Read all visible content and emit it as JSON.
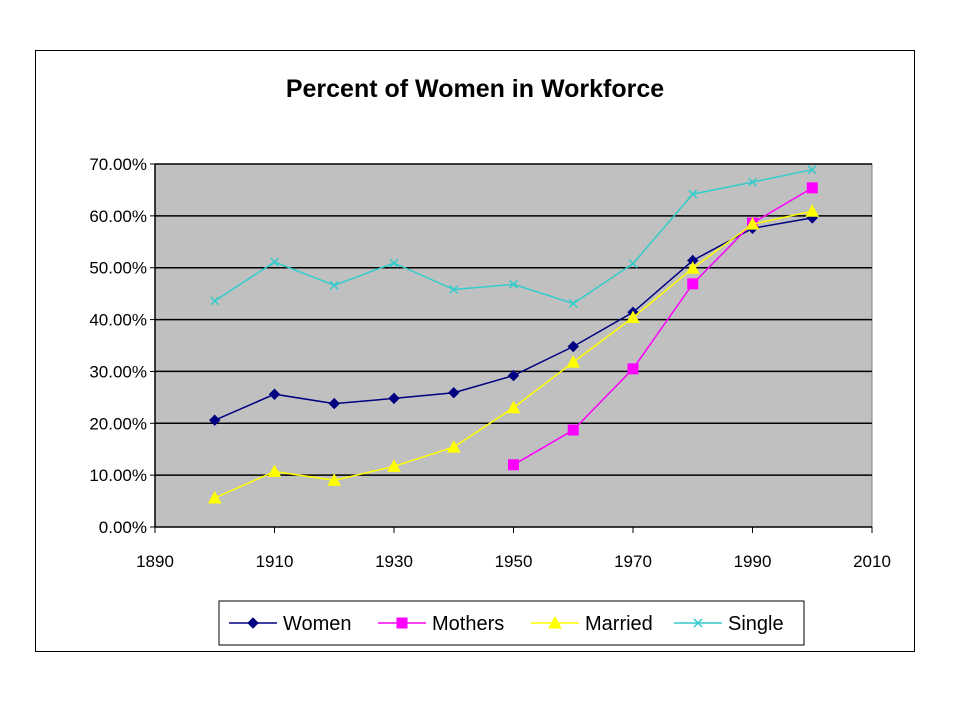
{
  "chart_data": {
    "type": "line",
    "title": "Percent of Women in Workforce",
    "xlabel": "",
    "ylabel": "",
    "xlim": [
      1890,
      2010
    ],
    "ylim": [
      0,
      0.7
    ],
    "x_ticks": [
      1890,
      1910,
      1930,
      1950,
      1970,
      1990,
      2010
    ],
    "x_tick_labels": [
      "1890",
      "1910",
      "1930",
      "1950",
      "1970",
      "1990",
      "2010"
    ],
    "y_ticks": [
      0,
      0.1,
      0.2,
      0.3,
      0.4,
      0.5,
      0.6,
      0.7
    ],
    "y_tick_labels": [
      "0.00%",
      "10.00%",
      "20.00%",
      "30.00%",
      "40.00%",
      "50.00%",
      "60.00%",
      "70.00%"
    ],
    "grid": "horizontal",
    "plot_background": "#c0c0c0",
    "legend_position": "bottom",
    "series": [
      {
        "name": "Women",
        "color": "#000080",
        "marker": "diamond",
        "x": [
          1900,
          1910,
          1920,
          1930,
          1940,
          1950,
          1960,
          1970,
          1980,
          1990,
          2000
        ],
        "values": [
          0.206,
          0.256,
          0.238,
          0.248,
          0.259,
          0.292,
          0.348,
          0.414,
          0.514,
          0.576,
          0.596
        ]
      },
      {
        "name": "Mothers",
        "color": "#ff00ff",
        "marker": "square",
        "x": [
          1950,
          1960,
          1970,
          1980,
          1990,
          2000
        ],
        "values": [
          0.12,
          0.187,
          0.305,
          0.469,
          0.586,
          0.654
        ]
      },
      {
        "name": "Married",
        "color": "#ffff00",
        "marker": "triangle",
        "x": [
          1900,
          1910,
          1920,
          1930,
          1940,
          1950,
          1960,
          1970,
          1980,
          1990,
          2000
        ],
        "values": [
          0.056,
          0.107,
          0.09,
          0.117,
          0.154,
          0.23,
          0.318,
          0.404,
          0.499,
          0.584,
          0.609
        ]
      },
      {
        "name": "Single",
        "color": "#33cccc",
        "marker": "x",
        "x": [
          1900,
          1910,
          1920,
          1930,
          1940,
          1950,
          1960,
          1970,
          1980,
          1990,
          2000
        ],
        "values": [
          0.436,
          0.511,
          0.466,
          0.509,
          0.458,
          0.468,
          0.431,
          0.508,
          0.642,
          0.665,
          0.689
        ]
      }
    ]
  }
}
